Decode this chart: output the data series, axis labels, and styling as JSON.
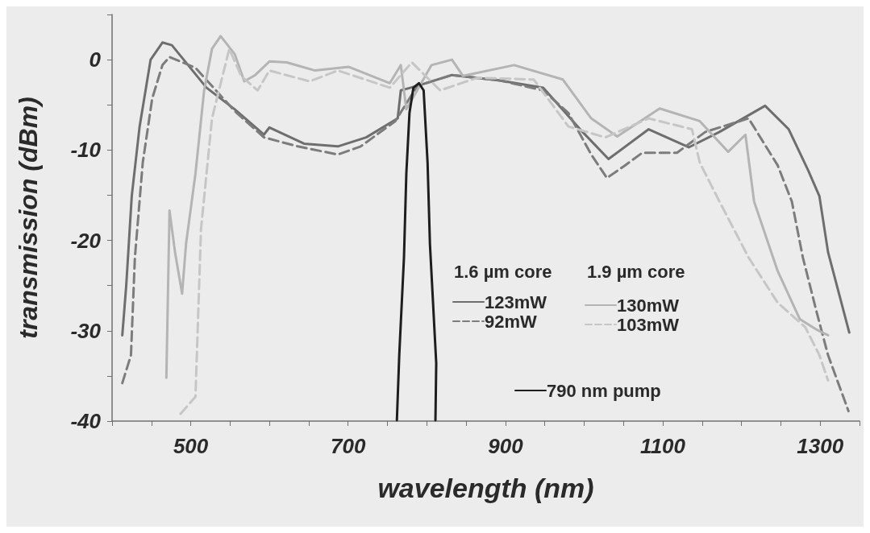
{
  "chart_data": {
    "type": "line",
    "xlabel": "wavelength (nm)",
    "ylabel": "transmission (dBm)",
    "xlim": [
      400,
      1350
    ],
    "ylim": [
      -40,
      5
    ],
    "xticks": [
      {
        "value": 400,
        "label": null
      },
      {
        "value": 450,
        "label": null
      },
      500,
      {
        "value": 550,
        "label": null
      },
      {
        "value": 600,
        "label": null
      },
      {
        "value": 650,
        "label": null
      },
      700,
      {
        "value": 750,
        "label": null
      },
      {
        "value": 800,
        "label": null
      },
      {
        "value": 850,
        "label": null
      },
      900,
      {
        "value": 950,
        "label": null
      },
      {
        "value": 1000,
        "label": null
      },
      {
        "value": 1050,
        "label": null
      },
      1100,
      {
        "value": 1150,
        "label": null
      },
      {
        "value": 1200,
        "label": null
      },
      {
        "value": 1250,
        "label": null
      },
      1300,
      {
        "value": 1350,
        "label": null
      }
    ],
    "yticks": [
      -40,
      {
        "value": -35,
        "label": null
      },
      -30,
      {
        "value": -25,
        "label": null
      },
      -20,
      {
        "value": -15,
        "label": null
      },
      -10,
      {
        "value": -5,
        "label": null
      },
      0,
      {
        "value": 5,
        "label": null
      }
    ],
    "grid": false,
    "legend": "bottom right",
    "marker": "none",
    "annotations": [
      "1.6 µm core",
      "1.9 µm core"
    ],
    "series": [
      {
        "name": "123mW",
        "color": "#6e6e6e",
        "line_style": "solid",
        "x": [
          413,
          418,
          425,
          435,
          449,
          464,
          476,
          520,
          556,
          593,
          600,
          644,
          687,
          723,
          763,
          767,
          788,
          832,
          893,
          948,
          998,
          1031,
          1082,
          1133,
          1172,
          1230,
          1260,
          1285,
          1299,
          1310,
          1337
        ],
        "values": [
          -30.5,
          -25,
          -15.1,
          -7.4,
          0,
          1.9,
          1.6,
          -3.1,
          -5.5,
          -8.3,
          -7.5,
          -9.3,
          -9.6,
          -8.6,
          -6.5,
          -3.4,
          -2.9,
          -1.7,
          -2.3,
          -3.1,
          -8.0,
          -11.0,
          -7.7,
          -9.7,
          -8.0,
          -5.1,
          -7.7,
          -12.3,
          -15.1,
          -21.3,
          -30.2
        ]
      },
      {
        "name": "92mW",
        "color": "#7c7c7c",
        "line_style": "dashed",
        "x": [
          413,
          424,
          429,
          439,
          451,
          464,
          473,
          506,
          556,
          593,
          636,
          687,
          716,
          760,
          788,
          832,
          893,
          948,
          980,
          1009,
          1029,
          1052,
          1074,
          1118,
          1154,
          1209,
          1246,
          1264,
          1278,
          1296,
          1310,
          1336
        ],
        "values": [
          -35.8,
          -32.7,
          -21.9,
          -11.4,
          -4.3,
          -0.6,
          0.3,
          -0.9,
          -5.7,
          -8.6,
          -9.6,
          -10.5,
          -9.6,
          -6.8,
          -2.9,
          -1.7,
          -2.3,
          -3.4,
          -5.9,
          -10.5,
          -13.1,
          -11.7,
          -10.3,
          -10.3,
          -8.0,
          -6.5,
          -11.7,
          -15.7,
          -21.9,
          -28.1,
          -32.7,
          -38.9
        ]
      },
      {
        "name": "130mW",
        "color": "#b4b4b4",
        "line_style": "solid",
        "x": [
          469,
          473,
          480,
          489,
          494,
          506,
          517,
          527,
          538,
          556,
          568,
          582,
          600,
          622,
          658,
          701,
          753,
          767,
          774,
          806,
          832,
          846,
          911,
          973,
          1009,
          1042,
          1096,
          1147,
          1183,
          1205,
          1216,
          1246,
          1274,
          1296,
          1310
        ],
        "values": [
          -35.2,
          -16.7,
          -21.3,
          -25.9,
          -20.4,
          -12.6,
          -3.4,
          1.2,
          2.6,
          0.6,
          -2.4,
          -1.7,
          -0.2,
          -0.3,
          -1.2,
          -0.8,
          -2.6,
          -0.6,
          -5.5,
          -0.6,
          0,
          -1.8,
          -0.6,
          -2.2,
          -6.5,
          -8.5,
          -5.4,
          -6.8,
          -10.2,
          -8.3,
          -15.7,
          -23.4,
          -28.7,
          -29.9,
          -30.5
        ]
      },
      {
        "name": "103mW",
        "color": "#c6c6c6",
        "line_style": "dashed",
        "x": [
          487,
          506,
          513,
          527,
          549,
          564,
          585,
          600,
          651,
          687,
          753,
          781,
          817,
          864,
          936,
          980,
          1027,
          1082,
          1137,
          1147,
          1172,
          1209,
          1246,
          1281,
          1299,
          1310
        ],
        "values": [
          -39.2,
          -37.3,
          -18.8,
          -6.5,
          1.2,
          -1.8,
          -3.4,
          -1.2,
          -2.4,
          -1.2,
          -3.1,
          -0.3,
          -3.4,
          -2.0,
          -2.2,
          -7.4,
          -8.6,
          -6.5,
          -7.7,
          -11.4,
          -15.7,
          -21.9,
          -26.9,
          -29.6,
          -32.7,
          -35.5
        ]
      },
      {
        "name": "790 nm pump",
        "color": "#1e1e1e",
        "line_style": "solid",
        "x": [
          762,
          765,
          771,
          774,
          778,
          783,
          790,
          796,
          801,
          804,
          812,
          811
        ],
        "values": [
          -39.9,
          -32.7,
          -21.9,
          -12.6,
          -5.9,
          -3.1,
          -2.6,
          -3.4,
          -11.4,
          -20.4,
          -33.6,
          -39.9
        ]
      }
    ]
  }
}
